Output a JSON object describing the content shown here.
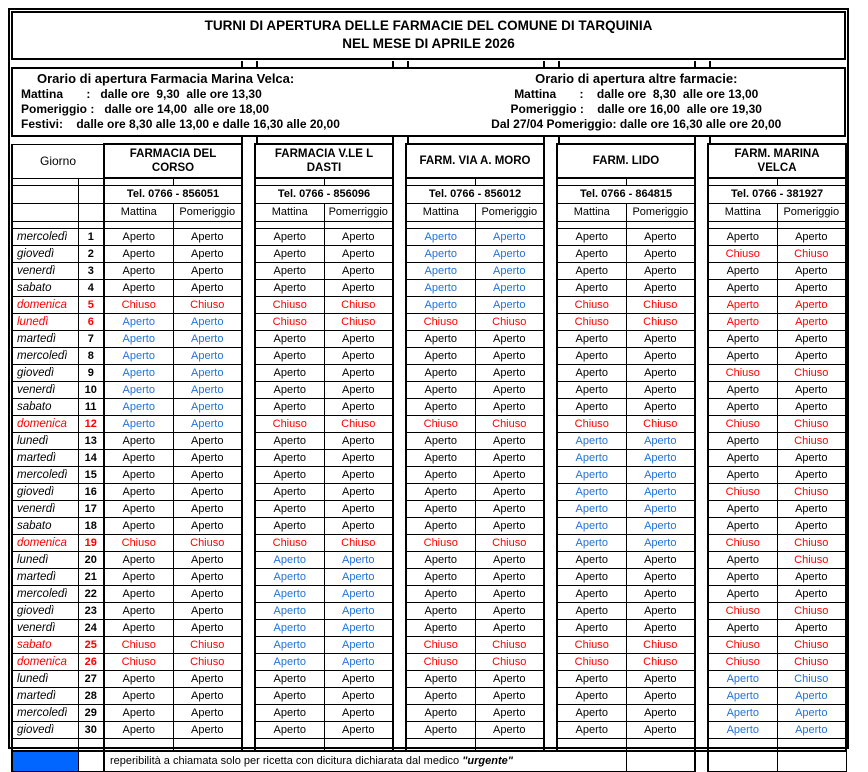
{
  "title": {
    "line1": "TURNI DI APERTURA DELLE FARMACIE DEL COMUNE DI TARQUINIA",
    "line2": "NEL MESE DI APRILE 2026"
  },
  "hours_left": {
    "heading": "Orario di apertura Farmacia Marina Velca:",
    "line1": "Mattina       :   dalle ore  9,30  alle ore 13,30",
    "line2": "Pomeriggio :   dalle ore 14,00  alle ore 18,00",
    "line3": "Festivi:    dalle ore 8,30 alle 13,00 e dalle 16,30 alle 20,00"
  },
  "hours_right": {
    "heading": "Orario di apertura altre farmacie:",
    "line1": "Mattina       :    dalle ore  8,30  alle ore 13,00",
    "line2": "Pomeriggio :    dalle ore 16,00  alle ore 19,30",
    "line3": "Dal 27/04 Pomeriggio: dalle ore 16,30 alle ore 20,00"
  },
  "table": {
    "day_header": "Giorno",
    "pharmacies": [
      {
        "name_line1": "FARMACIA DEL",
        "name_line2": "CORSO",
        "tel": "Tel. 0766 - 856051",
        "mattina": "Mattina",
        "pomeriggio": "Pomeriggio"
      },
      {
        "name_line1": "FARMACIA V.LE L",
        "name_line2": "DASTI",
        "tel": "Tel. 0766 - 856096",
        "mattina": "Mattina",
        "pomeriggio": "Pomerriggio"
      },
      {
        "name_line1": "FARM. VIA A. MORO",
        "name_line2": "",
        "tel": "Tel. 0766 - 856012",
        "mattina": "Mattina",
        "pomeriggio": "Pomeriggio"
      },
      {
        "name_line1": "FARM. LIDO",
        "name_line2": "",
        "tel": "Tel. 0766 - 864815",
        "mattina": "Mattina",
        "pomeriggio": "Pomeriggio"
      },
      {
        "name_line1": "FARM. MARINA",
        "name_line2": "VELCA",
        "tel": "Tel. 0766 - 381927",
        "mattina": "Mattina",
        "pomeriggio": "Pomeriggio"
      }
    ],
    "rows": [
      {
        "day": "mercoledì",
        "num": "1",
        "color": "k",
        "cells": [
          "Aperto|k",
          "Aperto|k",
          "Aperto|k",
          "Aperto|k",
          "Aperto|b",
          "Aperto|b",
          "Aperto|k",
          "Aperto|k",
          "Aperto|k",
          "Aperto|k"
        ]
      },
      {
        "day": "giovedì",
        "num": "2",
        "color": "k",
        "cells": [
          "Aperto|k",
          "Aperto|k",
          "Aperto|k",
          "Aperto|k",
          "Aperto|b",
          "Aperto|b",
          "Aperto|k",
          "Aperto|k",
          "Chiuso|r",
          "Chiuso|r"
        ]
      },
      {
        "day": "venerdì",
        "num": "3",
        "color": "k",
        "cells": [
          "Aperto|k",
          "Aperto|k",
          "Aperto|k",
          "Aperto|k",
          "Aperto|b",
          "Aperto|b",
          "Aperto|k",
          "Aperto|k",
          "Aperto|k",
          "Aperto|k"
        ]
      },
      {
        "day": "sabato",
        "num": "4",
        "color": "k",
        "cells": [
          "Aperto|k",
          "Aperto|k",
          "Aperto|k",
          "Aperto|k",
          "Aperto|b",
          "Aperto|b",
          "Aperto|k",
          "Aperto|k",
          "Aperto|k",
          "Aperto|k"
        ]
      },
      {
        "day": "domenica",
        "num": "5",
        "color": "r",
        "cells": [
          "Chiuso|r",
          "Chiuso|r",
          "Chiuso|r",
          "Chiuso|r",
          "Aperto|b",
          "Aperto|b",
          "Chiuso|r",
          "Chiuso|r",
          "Aperto|r",
          "Aperto|r"
        ]
      },
      {
        "day": "lunedì",
        "num": "6",
        "color": "r",
        "cells": [
          "Aperto|b",
          "Aperto|b",
          "Chiuso|r",
          "Chiuso|r",
          "Chiuso|r",
          "Chiuso|r",
          "Chiuso|r",
          "Chiuso|r",
          "Aperto|r",
          "Aperto|r"
        ]
      },
      {
        "day": "martedì",
        "num": "7",
        "color": "k",
        "cells": [
          "Aperto|b",
          "Aperto|b",
          "Aperto|k",
          "Aperto|k",
          "Aperto|k",
          "Aperto|k",
          "Aperto|k",
          "Aperto|k",
          "Aperto|k",
          "Aperto|k"
        ]
      },
      {
        "day": "mercoledì",
        "num": "8",
        "color": "k",
        "cells": [
          "Aperto|b",
          "Aperto|b",
          "Aperto|k",
          "Aperto|k",
          "Aperto|k",
          "Aperto|k",
          "Aperto|k",
          "Aperto|k",
          "Aperto|k",
          "Aperto|k"
        ]
      },
      {
        "day": "giovedì",
        "num": "9",
        "color": "k",
        "cells": [
          "Aperto|b",
          "Aperto|b",
          "Aperto|k",
          "Aperto|k",
          "Aperto|k",
          "Aperto|k",
          "Aperto|k",
          "Aperto|k",
          "Chiuso|r",
          "Chiuso|r"
        ]
      },
      {
        "day": "venerdì",
        "num": "10",
        "color": "k",
        "cells": [
          "Aperto|b",
          "Aperto|b",
          "Aperto|k",
          "Aperto|k",
          "Aperto|k",
          "Aperto|k",
          "Aperto|k",
          "Aperto|k",
          "Aperto|k",
          "Aperto|k"
        ]
      },
      {
        "day": "sabato",
        "num": "11",
        "color": "k",
        "cells": [
          "Aperto|b",
          "Aperto|b",
          "Aperto|k",
          "Aperto|k",
          "Aperto|k",
          "Aperto|k",
          "Aperto|k",
          "Aperto|k",
          "Aperto|k",
          "Aperto|k"
        ]
      },
      {
        "day": "domenica",
        "num": "12",
        "color": "r",
        "cells": [
          "Aperto|b",
          "Aperto|b",
          "Chiuso|r",
          "Chiuso|r",
          "Chiuso|r",
          "Chiuso|r",
          "Chiuso|r",
          "Chiuso|r",
          "Chiuso|r",
          "Chiuso|r"
        ]
      },
      {
        "day": "lunedì",
        "num": "13",
        "color": "k",
        "cells": [
          "Aperto|k",
          "Aperto|k",
          "Aperto|k",
          "Aperto|k",
          "Aperto|k",
          "Aperto|k",
          "Aperto|b",
          "Aperto|b",
          "Aperto|k",
          "Chiuso|r"
        ]
      },
      {
        "day": "martedì",
        "num": "14",
        "color": "k",
        "cells": [
          "Aperto|k",
          "Aperto|k",
          "Aperto|k",
          "Aperto|k",
          "Aperto|k",
          "Aperto|k",
          "Aperto|b",
          "Aperto|b",
          "Aperto|k",
          "Aperto|k"
        ]
      },
      {
        "day": "mercoledì",
        "num": "15",
        "color": "k",
        "cells": [
          "Aperto|k",
          "Aperto|k",
          "Aperto|k",
          "Aperto|k",
          "Aperto|k",
          "Aperto|k",
          "Aperto|b",
          "Aperto|b",
          "Aperto|k",
          "Aperto|k"
        ]
      },
      {
        "day": "giovedì",
        "num": "16",
        "color": "k",
        "cells": [
          "Aperto|k",
          "Aperto|k",
          "Aperto|k",
          "Aperto|k",
          "Aperto|k",
          "Aperto|k",
          "Aperto|b",
          "Aperto|b",
          "Chiuso|r",
          "Chiuso|r"
        ]
      },
      {
        "day": "venerdì",
        "num": "17",
        "color": "k",
        "cells": [
          "Aperto|k",
          "Aperto|k",
          "Aperto|k",
          "Aperto|k",
          "Aperto|k",
          "Aperto|k",
          "Aperto|b",
          "Aperto|b",
          "Aperto|k",
          "Aperto|k"
        ]
      },
      {
        "day": "sabato",
        "num": "18",
        "color": "k",
        "cells": [
          "Aperto|k",
          "Aperto|k",
          "Aperto|k",
          "Aperto|k",
          "Aperto|k",
          "Aperto|k",
          "Aperto|b",
          "Aperto|b",
          "Aperto|k",
          "Aperto|k"
        ]
      },
      {
        "day": "domenica",
        "num": "19",
        "color": "r",
        "cells": [
          "Chiuso|r",
          "Chiuso|r",
          "Chiuso|r",
          "Chiuso|r",
          "Chiuso|r",
          "Chiuso|r",
          "Aperto|b",
          "Aperto|b",
          "Chiuso|r",
          "Chiuso|r"
        ]
      },
      {
        "day": "lunedì",
        "num": "20",
        "color": "k",
        "cells": [
          "Aperto|k",
          "Aperto|k",
          "Aperto|b",
          "Aperto|b",
          "Aperto|k",
          "Aperto|k",
          "Aperto|k",
          "Aperto|k",
          "Aperto|k",
          "Chiuso|r"
        ]
      },
      {
        "day": "martedì",
        "num": "21",
        "color": "k",
        "cells": [
          "Aperto|k",
          "Aperto|k",
          "Aperto|b",
          "Aperto|b",
          "Aperto|k",
          "Aperto|k",
          "Aperto|k",
          "Aperto|k",
          "Aperto|k",
          "Aperto|k"
        ]
      },
      {
        "day": "mercoledì",
        "num": "22",
        "color": "k",
        "cells": [
          "Aperto|k",
          "Aperto|k",
          "Aperto|b",
          "Aperto|b",
          "Aperto|k",
          "Aperto|k",
          "Aperto|k",
          "Aperto|k",
          "Aperto|k",
          "Aperto|k"
        ]
      },
      {
        "day": "giovedì",
        "num": "23",
        "color": "k",
        "cells": [
          "Aperto|k",
          "Aperto|k",
          "Aperto|b",
          "Aperto|b",
          "Aperto|k",
          "Aperto|k",
          "Aperto|k",
          "Aperto|k",
          "Chiuso|r",
          "Chiuso|r"
        ]
      },
      {
        "day": "venerdì",
        "num": "24",
        "color": "k",
        "cells": [
          "Aperto|k",
          "Aperto|k",
          "Aperto|b",
          "Aperto|b",
          "Aperto|k",
          "Aperto|k",
          "Aperto|k",
          "Aperto|k",
          "Aperto|k",
          "Aperto|k"
        ]
      },
      {
        "day": "sabato",
        "num": "25",
        "color": "r",
        "cells": [
          "Chiuso|r",
          "Chiuso|r",
          "Aperto|b",
          "Aperto|b",
          "Chiuso|r",
          "Chiuso|r",
          "Chiuso|r",
          "Chiuso|r",
          "Chiuso|r",
          "Chiuso|r"
        ]
      },
      {
        "day": "domenica",
        "num": "26",
        "color": "r",
        "cells": [
          "Chiuso|r",
          "Chiuso|r",
          "Aperto|b",
          "Aperto|b",
          "Chiuso|r",
          "Chiuso|r",
          "Chiuso|r",
          "Chiuso|r",
          "Chiuso|r",
          "Chiuso|r"
        ]
      },
      {
        "day": "lunedì",
        "num": "27",
        "color": "k",
        "cells": [
          "Aperto|k",
          "Aperto|k",
          "Aperto|k",
          "Aperto|k",
          "Aperto|k",
          "Aperto|k",
          "Aperto|k",
          "Aperto|k",
          "Aperto|b",
          "Chiuso|b"
        ]
      },
      {
        "day": "martedì",
        "num": "28",
        "color": "k",
        "cells": [
          "Aperto|k",
          "Aperto|k",
          "Aperto|k",
          "Aperto|k",
          "Aperto|k",
          "Aperto|k",
          "Aperto|k",
          "Aperto|k",
          "Aperto|b",
          "Aperto|b"
        ]
      },
      {
        "day": "mercoledì",
        "num": "29",
        "color": "k",
        "cells": [
          "Aperto|k",
          "Aperto|k",
          "Aperto|k",
          "Aperto|k",
          "Aperto|k",
          "Aperto|k",
          "Aperto|k",
          "Aperto|k",
          "Aperto|b",
          "Aperto|b"
        ]
      },
      {
        "day": "giovedì",
        "num": "30",
        "color": "k",
        "cells": [
          "Aperto|k",
          "Aperto|k",
          "Aperto|k",
          "Aperto|k",
          "Aperto|k",
          "Aperto|k",
          "Aperto|k",
          "Aperto|k",
          "Aperto|b",
          "Aperto|b"
        ]
      }
    ]
  },
  "legend": {
    "text_prefix": "reperibilità a chiamata solo per ricetta con dicitura dichiarata dal medico ",
    "emphasis": "\"urgente\""
  },
  "colors": {
    "black": "#000000",
    "blue": "#2272d9",
    "red": "#ff0000",
    "legend_swatch": "#0066ff"
  }
}
